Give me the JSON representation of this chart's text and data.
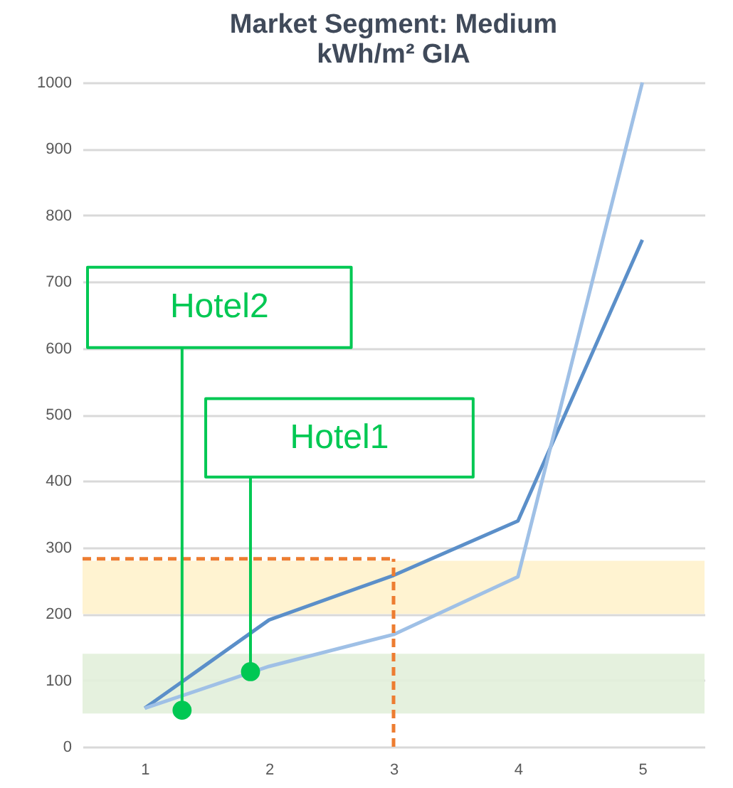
{
  "chart_data": {
    "type": "line",
    "title": "Market Segment: Medium\nkWh/m² GIA",
    "x": [
      1,
      2,
      3,
      4,
      5
    ],
    "series": [
      {
        "color": "#5b8fc9",
        "values": [
          58,
          191,
          258,
          340,
          763
        ]
      },
      {
        "color": "#9fc0e6",
        "values": [
          58,
          121,
          169,
          256,
          1000
        ]
      }
    ],
    "xlim": [
      0.5,
      5.5
    ],
    "xticks": [
      1,
      2,
      3,
      4,
      5
    ],
    "ylim": [
      0,
      1000
    ],
    "yticks": [
      0,
      100,
      200,
      300,
      400,
      500,
      600,
      700,
      800,
      900,
      1000
    ],
    "grid": "y",
    "marker": "none",
    "line_style": "solid",
    "ref_lines": [
      {
        "axis": "y",
        "value": 283,
        "color": "#ed7d31",
        "line_style": "dashed"
      },
      {
        "axis": "x",
        "value": 3,
        "color": "#ed7d31",
        "line_style": "dashed"
      }
    ],
    "bands": [
      {
        "axis": "y",
        "from": 200,
        "to": 280,
        "color": "#fff2cc"
      },
      {
        "axis": "y",
        "from": 50,
        "to": 140,
        "color": "#e2efda"
      }
    ],
    "annotations": [
      {
        "text": "Hotel2",
        "x": 1.3,
        "y": 55
      },
      {
        "text": "Hotel1",
        "x": 1.85,
        "y": 113
      }
    ]
  }
}
